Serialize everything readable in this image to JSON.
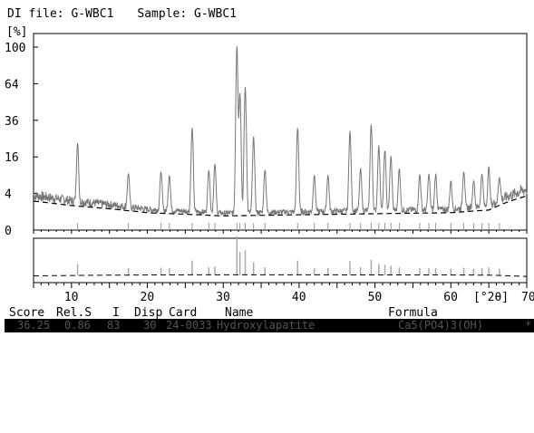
{
  "header": {
    "di_file": "DI file: G-WBC1",
    "sample": "Sample: G-WBC1"
  },
  "chart_data": {
    "type": "line",
    "title": "",
    "xlabel": "[°2θ]",
    "ylabel": "[%]",
    "xlim": [
      5,
      70
    ],
    "y_scale": "sqrt",
    "ylim": [
      0,
      100
    ],
    "x_ticks": [
      10,
      20,
      30,
      40,
      50,
      60,
      70
    ],
    "y_ticks": [
      0,
      4,
      16,
      36,
      64,
      100
    ],
    "peaks": {
      "x": [
        10.8,
        17.5,
        21.8,
        22.9,
        25.9,
        28.1,
        28.9,
        31.8,
        32.2,
        32.9,
        34.0,
        35.5,
        39.8,
        42.0,
        43.8,
        46.7,
        48.1,
        49.5,
        50.5,
        51.3,
        52.1,
        53.2,
        55.9,
        57.1,
        58.0,
        60.0,
        61.7,
        63.0,
        64.1,
        65.0,
        66.4
      ],
      "y": [
        20,
        8,
        9,
        8,
        30,
        10,
        12,
        100,
        55,
        60,
        25,
        10,
        30,
        8,
        8,
        28,
        10,
        32,
        20,
        18,
        15,
        10,
        8,
        8,
        8,
        6,
        9,
        6,
        8,
        10,
        6
      ]
    },
    "background": {
      "x": [
        5,
        10,
        20,
        30,
        40,
        50,
        60,
        65,
        70
      ],
      "y": [
        2.5,
        1.8,
        0.9,
        0.6,
        0.7,
        0.8,
        0.9,
        1.2,
        3.5
      ]
    }
  },
  "results": {
    "headers": [
      "Score",
      "Rel.S",
      "I",
      "Disp",
      "Card",
      "Name",
      "Formula"
    ],
    "row": [
      "36.25",
      "0.86",
      "83",
      "30",
      "24-0033",
      "Hydroxylapatite",
      "Ca5(PO4)3(OH)",
      "*"
    ]
  }
}
